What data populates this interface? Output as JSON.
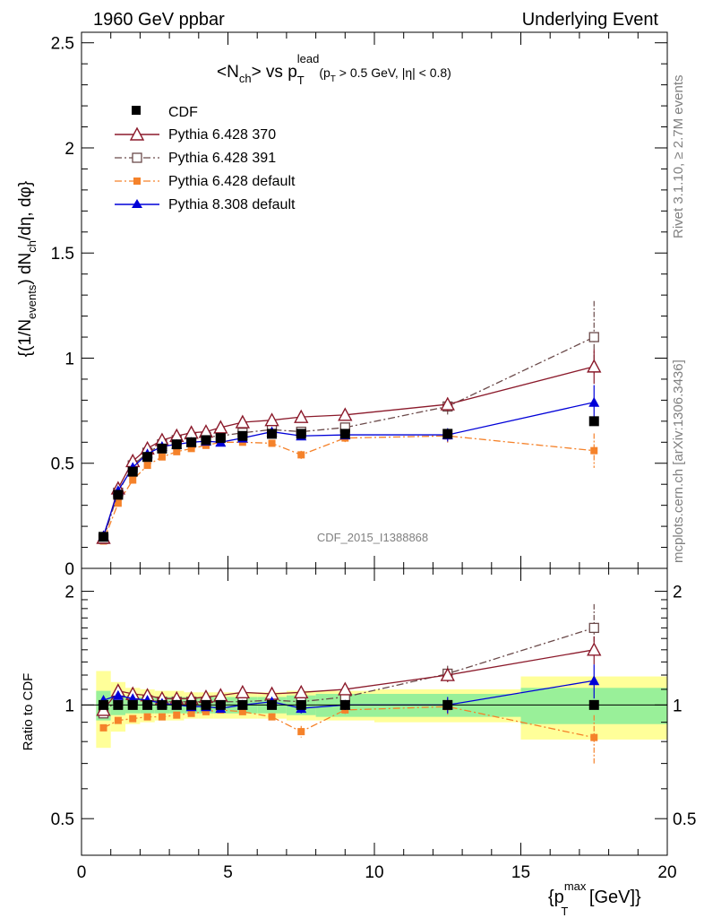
{
  "header": {
    "left": "1960 GeV ppbar",
    "right": "Underlying Event"
  },
  "plot_title": {
    "main": "<N",
    "main_sub": "ch",
    "main_mid": "> vs p",
    "main_sub2": "T",
    "main_sup2": "lead",
    "cut_open": "(p",
    "cut_sub": "T",
    "cut_rest": " > 0.5 GeV, |η| < 0.8)"
  },
  "ylabel": {
    "part1": "{(1/N",
    "sub1": "events",
    "part2": ") dN",
    "sub2": "ch",
    "part3": "/dη, dφ}"
  },
  "ratio_ylabel": "Ratio to CDF",
  "xlabel": {
    "open": "{p",
    "sup": "max",
    "sub": "T",
    "rest": " [GeV]}"
  },
  "side_text": {
    "rivet": "Rivet 3.1.10, ≥ 2.7M events",
    "mcplots": "mcplots.cern.ch [arXiv:1306.3436]"
  },
  "watermark": "CDF_2015_I1388868",
  "legend": [
    {
      "label": "CDF"
    },
    {
      "label": "Pythia 6.428 370"
    },
    {
      "label": "Pythia 6.428 391"
    },
    {
      "label": "Pythia 6.428 default"
    },
    {
      "label": "Pythia 8.308 default"
    }
  ],
  "chart_data": {
    "type": "scatter",
    "xlim": [
      0,
      20
    ],
    "ylim_main": [
      0,
      2.55
    ],
    "ylim_ratio": [
      0.4,
      2.3
    ],
    "yticks_main": [
      "0",
      "0.5",
      "1",
      "1.5",
      "2",
      "2.5"
    ],
    "yticks_ratio": [
      "0.5",
      "1",
      "2"
    ],
    "xticks": [
      "0",
      "5",
      "10",
      "15",
      "20"
    ],
    "bins": [
      0.5,
      1.0,
      1.5,
      2.0,
      2.5,
      3.0,
      3.5,
      4.0,
      4.5,
      5.0,
      6.0,
      7.0,
      8.0,
      10.0,
      15.0,
      20.0
    ],
    "x": [
      0.75,
      1.25,
      1.75,
      2.25,
      2.75,
      3.25,
      3.75,
      4.25,
      4.75,
      5.5,
      6.5,
      7.5,
      9.0,
      12.5,
      17.5
    ],
    "band_inner": [
      0.09,
      0.06,
      0.05,
      0.05,
      0.05,
      0.05,
      0.05,
      0.05,
      0.05,
      0.05,
      0.05,
      0.06,
      0.07,
      0.07,
      0.11
    ],
    "band_outer": [
      0.23,
      0.15,
      0.11,
      0.1,
      0.09,
      0.09,
      0.08,
      0.08,
      0.08,
      0.08,
      0.08,
      0.09,
      0.09,
      0.1,
      0.19
    ],
    "series": [
      {
        "name": "CDF",
        "color": "#000000",
        "marker": "square-filled",
        "line": "none",
        "values": [
          0.15,
          0.35,
          0.46,
          0.53,
          0.57,
          0.59,
          0.6,
          0.61,
          0.62,
          0.63,
          0.64,
          0.64,
          0.64,
          0.64,
          0.7
        ],
        "ratio": [
          1,
          1,
          1,
          1,
          1,
          1,
          1,
          1,
          1,
          1,
          1,
          1,
          1,
          1,
          1
        ],
        "err": [
          0,
          0,
          0,
          0,
          0,
          0,
          0,
          0,
          0,
          0,
          0,
          0,
          0,
          0,
          0
        ]
      },
      {
        "name": "Pythia 6.428 370",
        "color": "#8b1a2b",
        "marker": "triangle-open",
        "line": "solid",
        "values": [
          0.145,
          0.38,
          0.51,
          0.57,
          0.61,
          0.63,
          0.645,
          0.65,
          0.67,
          0.695,
          0.705,
          0.72,
          0.73,
          0.78,
          0.96
        ],
        "ratio": [
          0.97,
          1.09,
          1.07,
          1.06,
          1.04,
          1.04,
          1.04,
          1.05,
          1.06,
          1.08,
          1.07,
          1.08,
          1.1,
          1.2,
          1.4
        ],
        "err": [
          0,
          0.01,
          0.01,
          0.01,
          0.01,
          0.01,
          0.01,
          0.01,
          0.01,
          0.02,
          0.02,
          0.03,
          0.03,
          0.05,
          0.12
        ]
      },
      {
        "name": "Pythia 6.428 391",
        "color": "#6b4a4a",
        "marker": "square-open",
        "line": "dashdot",
        "values": [
          0.14,
          0.36,
          0.49,
          0.55,
          0.59,
          0.61,
          0.62,
          0.625,
          0.63,
          0.645,
          0.66,
          0.65,
          0.67,
          0.77,
          1.1
        ],
        "ratio": [
          0.95,
          1.04,
          1.03,
          1.03,
          1.02,
          1.02,
          1.02,
          1.02,
          1.02,
          1.02,
          1.03,
          1.02,
          1.05,
          1.21,
          1.6
        ],
        "err": [
          0,
          0.01,
          0.01,
          0.01,
          0.01,
          0.01,
          0.01,
          0.01,
          0.01,
          0.02,
          0.02,
          0.03,
          0.03,
          0.06,
          0.25
        ]
      },
      {
        "name": "Pythia 6.428 default",
        "color": "#f5822a",
        "marker": "square-filled",
        "line": "dashdot",
        "values": [
          0.13,
          0.31,
          0.42,
          0.49,
          0.53,
          0.555,
          0.57,
          0.585,
          0.6,
          0.6,
          0.595,
          0.54,
          0.62,
          0.63,
          0.56
        ],
        "ratio": [
          0.87,
          0.91,
          0.92,
          0.93,
          0.93,
          0.94,
          0.95,
          0.96,
          0.97,
          0.96,
          0.93,
          0.85,
          0.97,
          0.99,
          0.82
        ],
        "err": [
          0,
          0.01,
          0.01,
          0.01,
          0.01,
          0.01,
          0.01,
          0.01,
          0.01,
          0.02,
          0.02,
          0.03,
          0.03,
          0.05,
          0.12
        ]
      },
      {
        "name": "Pythia 8.308 default",
        "color": "#0000d8",
        "marker": "triangle-filled",
        "line": "solid",
        "values": [
          0.155,
          0.37,
          0.48,
          0.545,
          0.58,
          0.59,
          0.6,
          0.605,
          0.6,
          0.62,
          0.65,
          0.63,
          0.635,
          0.635,
          0.79
        ],
        "ratio": [
          1.03,
          1.06,
          1.04,
          1.03,
          1.01,
          1.0,
          0.99,
          0.99,
          0.98,
          1.0,
          1.02,
          0.98,
          1.0,
          1.0,
          1.16
        ],
        "err": [
          0,
          0.01,
          0.01,
          0.01,
          0.01,
          0.01,
          0.01,
          0.01,
          0.01,
          0.02,
          0.02,
          0.03,
          0.03,
          0.05,
          0.12
        ]
      }
    ]
  }
}
